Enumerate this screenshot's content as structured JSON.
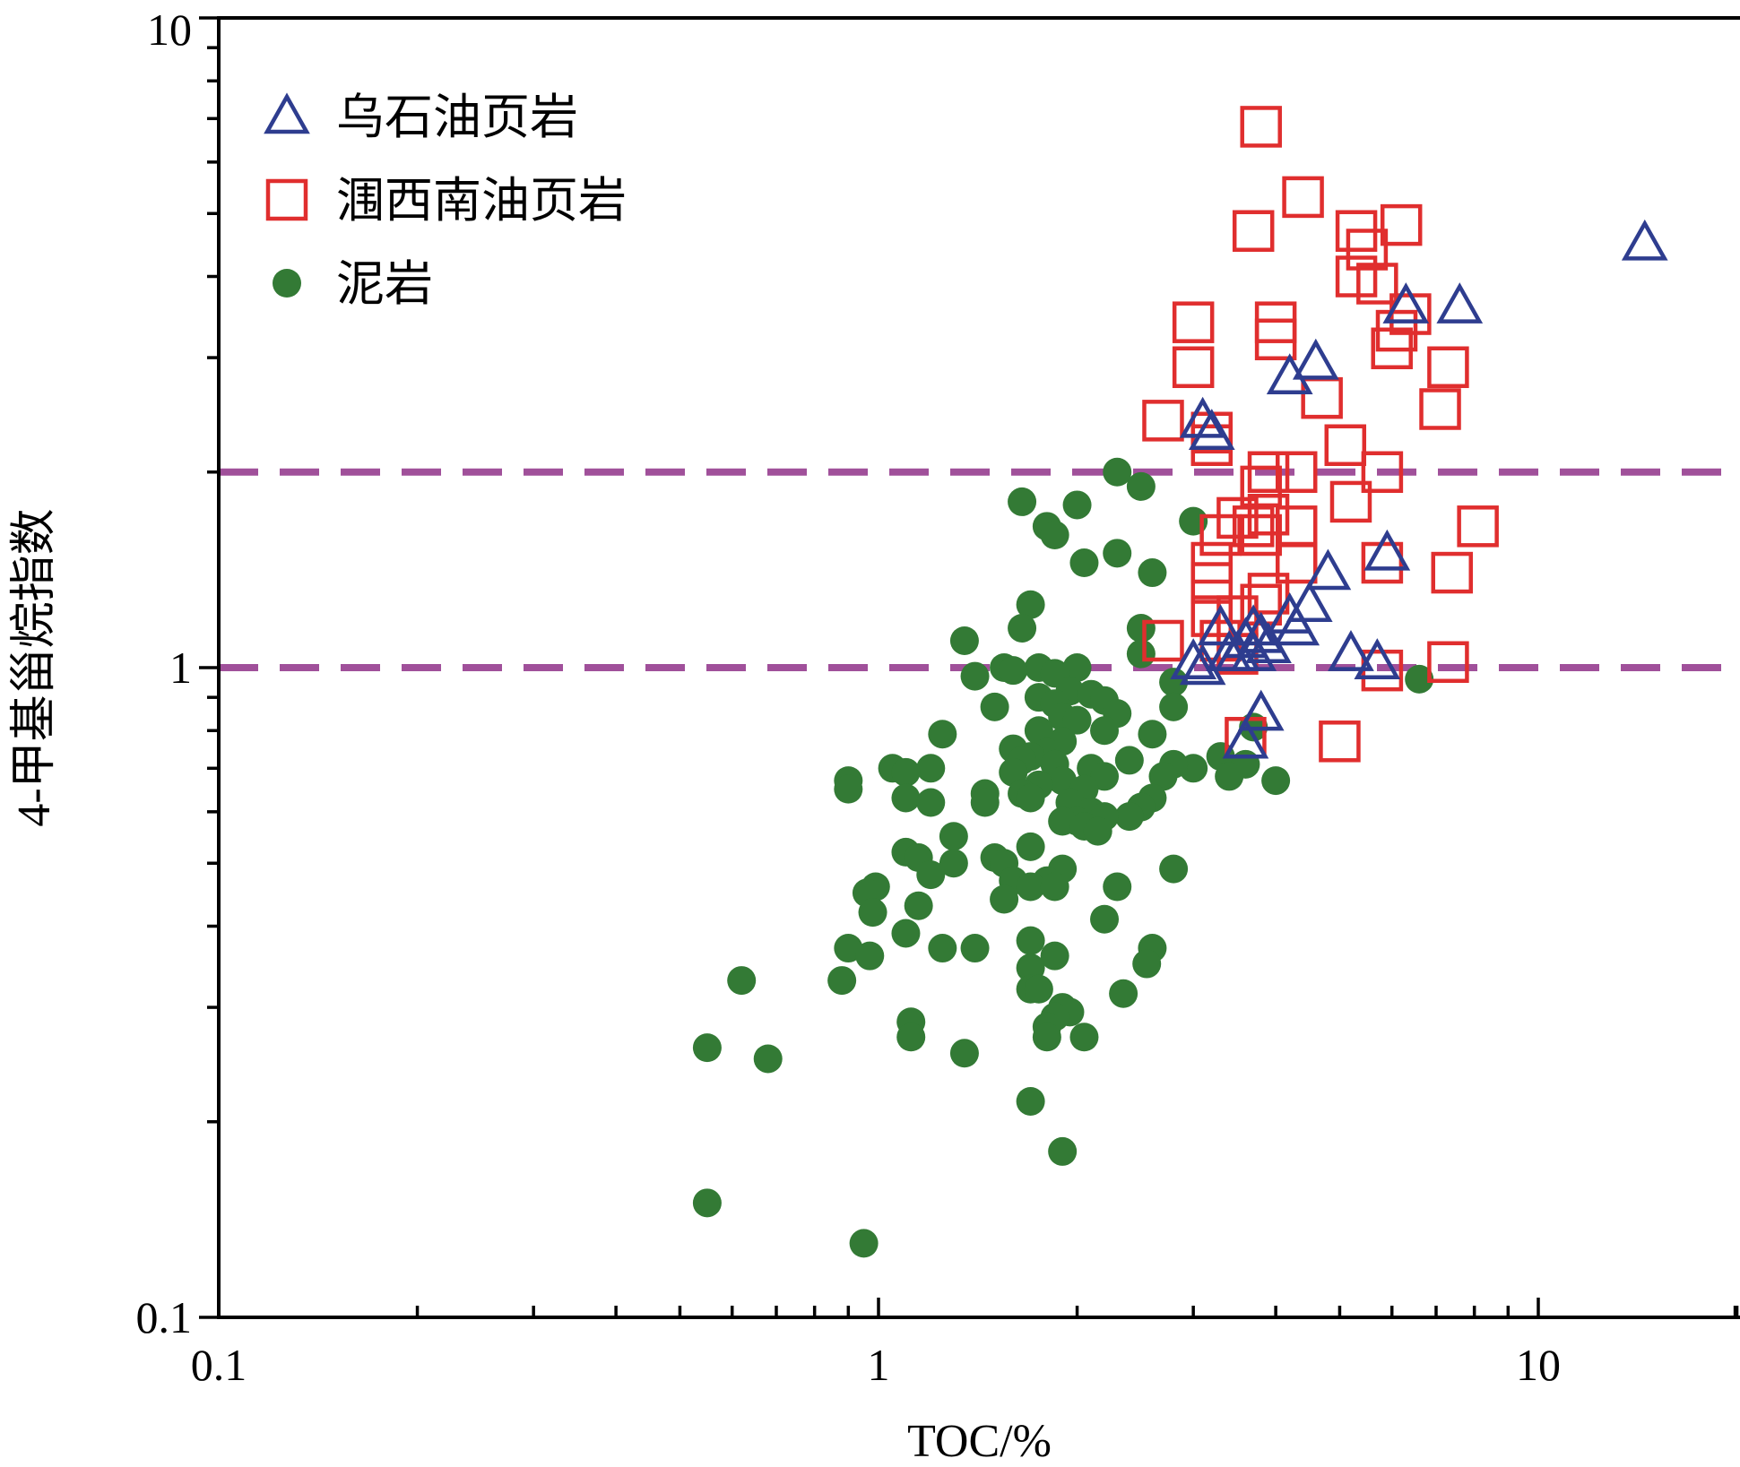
{
  "chart_data": {
    "type": "scatter",
    "xlabel": "TOC/%",
    "ylabel": "4-甲基甾烷指数",
    "xscale": "log",
    "yscale": "log",
    "xlim": [
      0.1,
      20
    ],
    "ylim": [
      0.1,
      10
    ],
    "x_tick_labels": [
      "0.1",
      "1",
      "10"
    ],
    "y_tick_labels": [
      "0.1",
      "1",
      "10"
    ],
    "grid": false,
    "legend_position": "top-left",
    "reference_lines": [
      {
        "y": 2,
        "style": "dashed",
        "color": "#a0509a"
      },
      {
        "y": 1,
        "style": "dashed",
        "color": "#a0509a"
      }
    ],
    "series": [
      {
        "name": "乌石油页岩",
        "marker": "triangle-open",
        "color": "#2e3d8f",
        "points": [
          [
            14.5,
            4.5
          ],
          [
            7.6,
            3.6
          ],
          [
            6.3,
            3.6
          ],
          [
            4.6,
            2.95
          ],
          [
            4.2,
            2.8
          ],
          [
            3.1,
            2.4
          ],
          [
            3.2,
            2.3
          ],
          [
            5.9,
            1.5
          ],
          [
            4.8,
            1.4
          ],
          [
            4.5,
            1.25
          ],
          [
            4.2,
            1.2
          ],
          [
            4.3,
            1.15
          ],
          [
            3.3,
            1.15
          ],
          [
            3.7,
            1.15
          ],
          [
            3.8,
            1.12
          ],
          [
            3.6,
            1.1
          ],
          [
            3.9,
            1.08
          ],
          [
            3.4,
            1.05
          ],
          [
            3.5,
            1.05
          ],
          [
            3.7,
            1.05
          ],
          [
            3.0,
            1.02
          ],
          [
            5.2,
            1.05
          ],
          [
            5.7,
            1.02
          ],
          [
            3.1,
            1.0
          ],
          [
            3.8,
            0.85
          ],
          [
            3.6,
            0.77
          ]
        ]
      },
      {
        "name": "涠西南油页岩",
        "marker": "square-open",
        "color": "#e02e2e",
        "points": [
          [
            3.8,
            6.8
          ],
          [
            4.4,
            5.3
          ],
          [
            3.7,
            4.7
          ],
          [
            5.3,
            4.7
          ],
          [
            6.2,
            4.8
          ],
          [
            5.5,
            4.4
          ],
          [
            5.3,
            4.0
          ],
          [
            5.7,
            3.9
          ],
          [
            4.0,
            3.4
          ],
          [
            3.0,
            3.4
          ],
          [
            4.0,
            3.2
          ],
          [
            6.1,
            3.3
          ],
          [
            6.4,
            3.5
          ],
          [
            6.0,
            3.1
          ],
          [
            3.0,
            2.9
          ],
          [
            7.3,
            2.9
          ],
          [
            4.7,
            2.6
          ],
          [
            7.1,
            2.5
          ],
          [
            2.7,
            2.4
          ],
          [
            3.2,
            2.3
          ],
          [
            3.2,
            2.2
          ],
          [
            5.1,
            2.2
          ],
          [
            5.8,
            2.0
          ],
          [
            3.9,
            2.0
          ],
          [
            4.3,
            2.0
          ],
          [
            3.8,
            1.9
          ],
          [
            5.2,
            1.8
          ],
          [
            3.9,
            1.72
          ],
          [
            3.5,
            1.7
          ],
          [
            3.7,
            1.65
          ],
          [
            8.1,
            1.65
          ],
          [
            4.3,
            1.65
          ],
          [
            3.3,
            1.6
          ],
          [
            3.8,
            1.6
          ],
          [
            4.3,
            1.45
          ],
          [
            3.2,
            1.45
          ],
          [
            5.8,
            1.45
          ],
          [
            3.2,
            1.35
          ],
          [
            3.9,
            1.3
          ],
          [
            7.4,
            1.4
          ],
          [
            3.8,
            1.25
          ],
          [
            3.2,
            1.2
          ],
          [
            3.5,
            1.2
          ],
          [
            2.7,
            1.1
          ],
          [
            3.3,
            1.1
          ],
          [
            3.5,
            1.05
          ],
          [
            5.8,
            0.99
          ],
          [
            7.3,
            1.02
          ],
          [
            3.6,
            0.78
          ],
          [
            5.0,
            0.77
          ]
        ]
      },
      {
        "name": "泥岩",
        "marker": "circle-filled",
        "color": "#337a35",
        "points": [
          [
            2.3,
            2.0
          ],
          [
            2.5,
            1.9
          ],
          [
            1.65,
            1.8
          ],
          [
            2.0,
            1.78
          ],
          [
            3.0,
            1.68
          ],
          [
            1.8,
            1.65
          ],
          [
            1.85,
            1.6
          ],
          [
            2.3,
            1.5
          ],
          [
            2.05,
            1.45
          ],
          [
            2.6,
            1.4
          ],
          [
            1.7,
            1.25
          ],
          [
            2.5,
            1.15
          ],
          [
            1.65,
            1.15
          ],
          [
            1.35,
            1.1
          ],
          [
            2.5,
            1.05
          ],
          [
            1.55,
            1.0
          ],
          [
            1.75,
            1.0
          ],
          [
            2.0,
            1.0
          ],
          [
            1.6,
            0.99
          ],
          [
            1.85,
            0.98
          ],
          [
            1.4,
            0.97
          ],
          [
            6.6,
            0.96
          ],
          [
            2.8,
            0.95
          ],
          [
            1.95,
            0.92
          ],
          [
            2.1,
            0.91
          ],
          [
            1.75,
            0.9
          ],
          [
            2.2,
            0.89
          ],
          [
            1.85,
            0.88
          ],
          [
            1.5,
            0.87
          ],
          [
            2.3,
            0.85
          ],
          [
            2.8,
            0.87
          ],
          [
            1.9,
            0.84
          ],
          [
            2.0,
            0.83
          ],
          [
            3.7,
            0.81
          ],
          [
            1.75,
            0.8
          ],
          [
            2.2,
            0.8
          ],
          [
            2.6,
            0.79
          ],
          [
            1.25,
            0.79
          ],
          [
            1.9,
            0.77
          ],
          [
            1.6,
            0.75
          ],
          [
            1.8,
            0.74
          ],
          [
            1.7,
            0.73
          ],
          [
            1.65,
            0.72
          ],
          [
            2.4,
            0.72
          ],
          [
            3.3,
            0.73
          ],
          [
            1.85,
            0.71
          ],
          [
            1.05,
            0.7
          ],
          [
            1.2,
            0.7
          ],
          [
            1.6,
            0.69
          ],
          [
            2.1,
            0.7
          ],
          [
            3.6,
            0.71
          ],
          [
            3.0,
            0.7
          ],
          [
            2.8,
            0.71
          ],
          [
            1.1,
            0.69
          ],
          [
            3.4,
            0.68
          ],
          [
            2.2,
            0.68
          ],
          [
            4.0,
            0.67
          ],
          [
            2.7,
            0.68
          ],
          [
            0.9,
            0.67
          ],
          [
            1.9,
            0.67
          ],
          [
            1.75,
            0.66
          ],
          [
            0.9,
            0.65
          ],
          [
            1.65,
            0.64
          ],
          [
            2.05,
            0.65
          ],
          [
            1.45,
            0.64
          ],
          [
            1.1,
            0.63
          ],
          [
            1.7,
            0.63
          ],
          [
            2.6,
            0.63
          ],
          [
            1.2,
            0.62
          ],
          [
            1.45,
            0.62
          ],
          [
            1.95,
            0.62
          ],
          [
            2.5,
            0.61
          ],
          [
            2.1,
            0.6
          ],
          [
            2.4,
            0.59
          ],
          [
            2.2,
            0.59
          ],
          [
            2.0,
            0.58
          ],
          [
            1.9,
            0.58
          ],
          [
            2.05,
            0.57
          ],
          [
            2.15,
            0.56
          ],
          [
            1.3,
            0.55
          ],
          [
            1.7,
            0.53
          ],
          [
            1.1,
            0.52
          ],
          [
            1.15,
            0.51
          ],
          [
            1.5,
            0.51
          ],
          [
            1.3,
            0.5
          ],
          [
            1.55,
            0.5
          ],
          [
            1.9,
            0.49
          ],
          [
            2.8,
            0.49
          ],
          [
            1.2,
            0.48
          ],
          [
            1.8,
            0.47
          ],
          [
            1.6,
            0.47
          ],
          [
            1.7,
            0.46
          ],
          [
            0.99,
            0.46
          ],
          [
            1.85,
            0.46
          ],
          [
            2.3,
            0.46
          ],
          [
            0.96,
            0.45
          ],
          [
            1.55,
            0.44
          ],
          [
            1.15,
            0.43
          ],
          [
            0.98,
            0.42
          ],
          [
            2.2,
            0.41
          ],
          [
            1.1,
            0.39
          ],
          [
            1.7,
            0.38
          ],
          [
            1.4,
            0.37
          ],
          [
            1.25,
            0.37
          ],
          [
            2.6,
            0.37
          ],
          [
            0.9,
            0.37
          ],
          [
            1.85,
            0.36
          ],
          [
            0.97,
            0.36
          ],
          [
            2.55,
            0.35
          ],
          [
            1.7,
            0.345
          ],
          [
            0.62,
            0.33
          ],
          [
            0.88,
            0.33
          ],
          [
            1.7,
            0.32
          ],
          [
            1.75,
            0.32
          ],
          [
            2.35,
            0.315
          ],
          [
            1.9,
            0.3
          ],
          [
            1.95,
            0.295
          ],
          [
            1.85,
            0.29
          ],
          [
            1.12,
            0.285
          ],
          [
            1.8,
            0.28
          ],
          [
            1.12,
            0.27
          ],
          [
            1.8,
            0.27
          ],
          [
            2.05,
            0.27
          ],
          [
            0.55,
            0.26
          ],
          [
            0.68,
            0.25
          ],
          [
            1.35,
            0.255
          ],
          [
            1.7,
            0.215
          ],
          [
            1.9,
            0.18
          ],
          [
            0.55,
            0.15
          ],
          [
            0.95,
            0.13
          ]
        ]
      }
    ]
  }
}
